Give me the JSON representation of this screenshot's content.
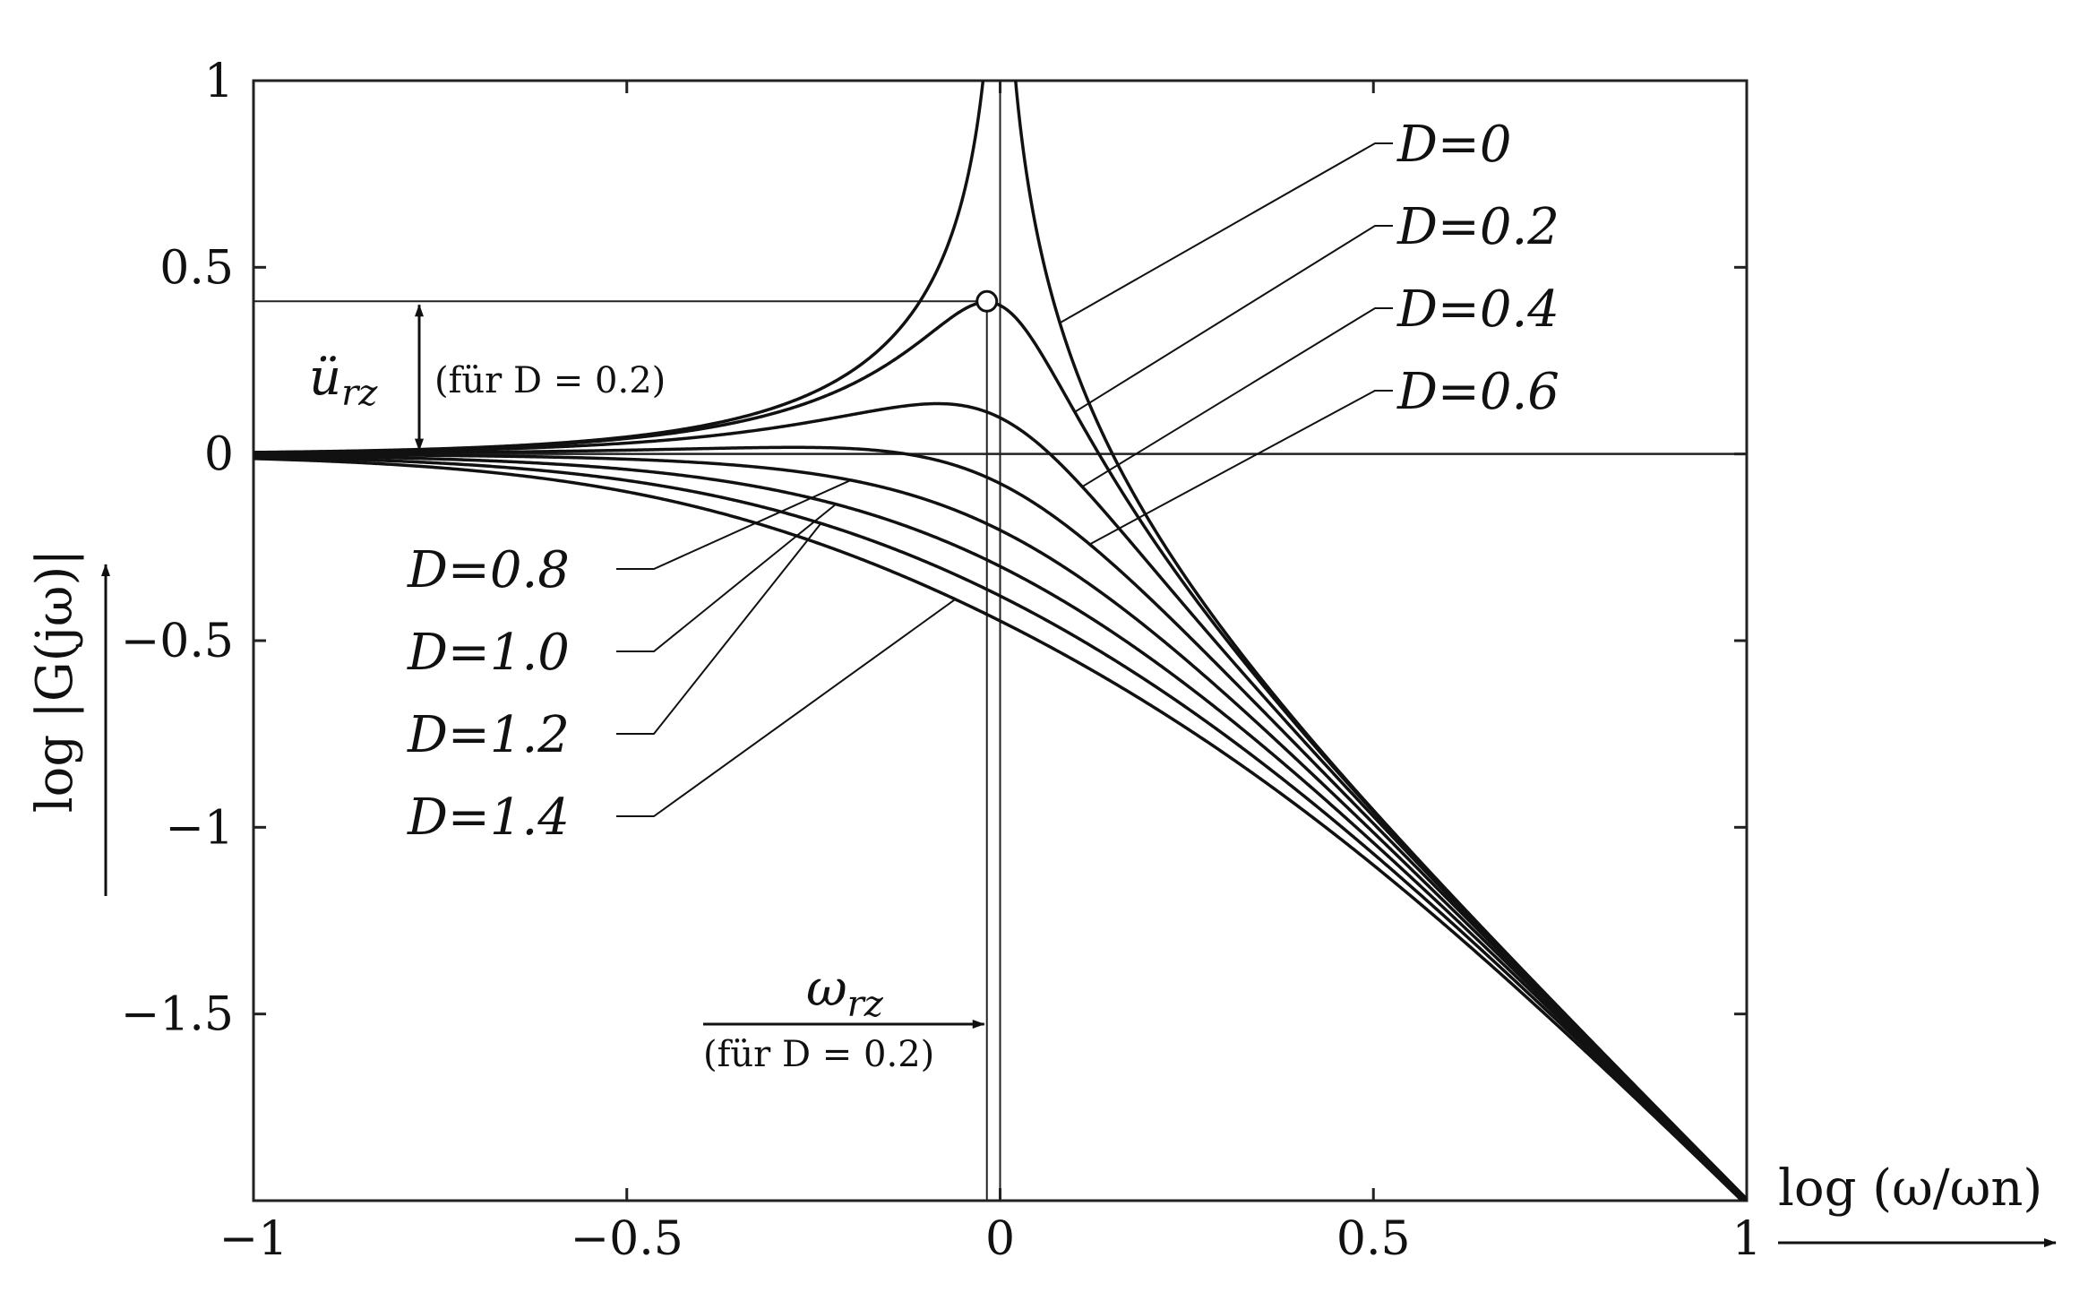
{
  "chart_data": {
    "type": "line",
    "xlabel": "log (ω/ωn)",
    "ylabel": "log |G(jω)|",
    "xlim": [
      -1,
      1
    ],
    "ylim": [
      -2,
      1
    ],
    "grid": false,
    "x_ticks": [
      -1,
      -0.5,
      0,
      0.5,
      1
    ],
    "x_tick_labels": [
      "−1",
      "−0.5",
      "0",
      "0.5",
      "1"
    ],
    "y_ticks": [
      1,
      0.5,
      0,
      -0.5,
      -1,
      -1.5
    ],
    "y_tick_labels": [
      "1",
      "0.5",
      "0",
      "−0.5",
      "−1",
      "−1.5"
    ],
    "series": [
      {
        "name": "D=0",
        "D": 0
      },
      {
        "name": "D=0.2",
        "D": 0.2
      },
      {
        "name": "D=0.4",
        "D": 0.4
      },
      {
        "name": "D=0.6",
        "D": 0.6
      },
      {
        "name": "D=0.8",
        "D": 0.8
      },
      {
        "name": "D=1.0",
        "D": 1.0
      },
      {
        "name": "D=1.2",
        "D": 1.2
      },
      {
        "name": "D=1.4",
        "D": 1.4
      }
    ],
    "curve_function": "log10(1/sqrt((1-(w/wn)^2)^2+(2*D*w/wn)^2))",
    "resonance_point": {
      "x": -0.0177,
      "y": 0.4089
    },
    "annotations": {
      "u_rz": "ü",
      "u_rz_sub": "rz",
      "u_rz_note": "(für D = 0.2)",
      "omega_rz": "ω",
      "omega_rz_sub": "rz",
      "omega_rz_note": "(für D = 0.2)"
    }
  }
}
